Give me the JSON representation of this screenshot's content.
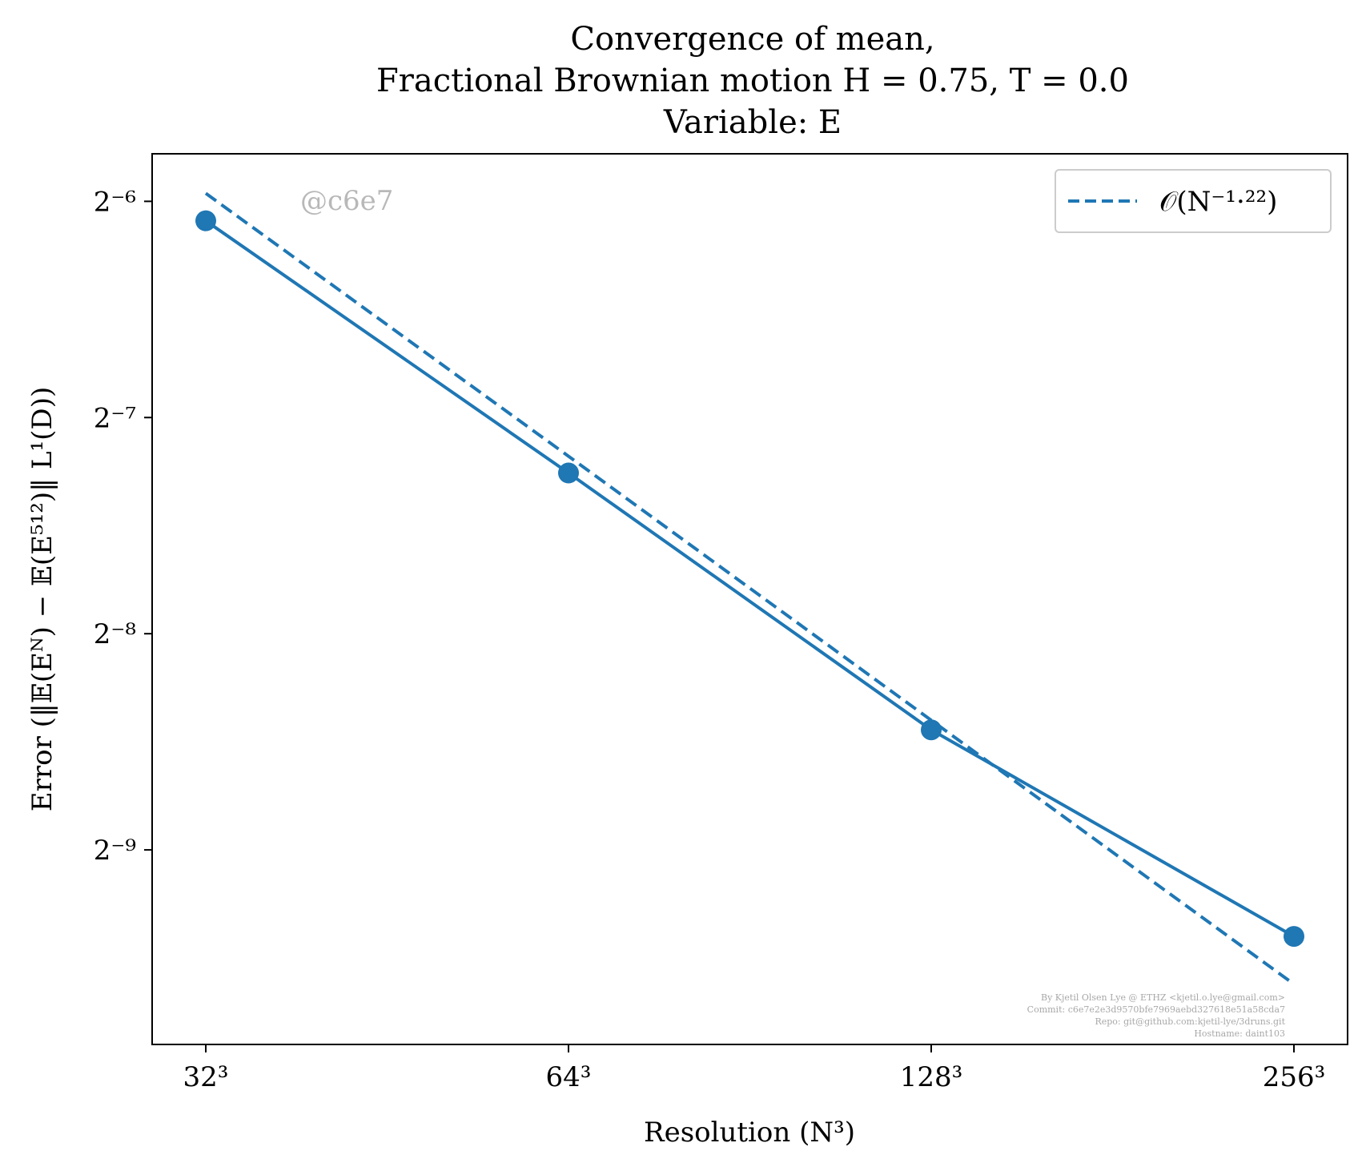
{
  "chart_data": {
    "type": "line",
    "title_lines": [
      "Convergence of mean,",
      "Fractional Brownian motion H = 0.75, T = 0.0",
      "Variable: E"
    ],
    "xlabel": "Resolution (N³)",
    "ylabel": "Error (‖𝔼(Eᴺ) − 𝔼(E⁵¹²)‖ L¹(D))",
    "x_scale": "log2",
    "y_scale": "log2",
    "x": [
      32,
      64,
      128,
      256
    ],
    "x_tick_labels": [
      "32³",
      "64³",
      "128³",
      "256³"
    ],
    "y_ticks": [
      -6,
      -7,
      -8,
      -9
    ],
    "y_tick_labels": [
      "2⁻⁶",
      "2⁻⁷",
      "2⁻⁸",
      "2⁻⁹"
    ],
    "ylim_log2": [
      -9.9,
      -5.78
    ],
    "series": [
      {
        "style": "solid-with-markers",
        "color": "#1f77b4",
        "values": [
          0.01468,
          0.00654,
          0.00287,
          0.00148
        ]
      },
      {
        "name": "𝒪(N⁻¹·²²)",
        "style": "dashed",
        "color": "#1f77b4",
        "values": [
          0.01603,
          0.0069,
          0.00296,
          0.00127
        ]
      }
    ],
    "legend": {
      "position": "top-right",
      "label": "𝒪(N⁻¹·²²)"
    },
    "grid": false,
    "watermark": "@c6e7",
    "credits": [
      "By Kjetil Olsen Lye @ ETHZ <kjetil.o.lye@gmail.com>",
      "Commit: c6e7e2e3d9570bfe7969aebd327618e51a58cda7",
      "Repo: git@github.com:kjetil-lye/3druns.git",
      "Hostname: daint103"
    ]
  }
}
